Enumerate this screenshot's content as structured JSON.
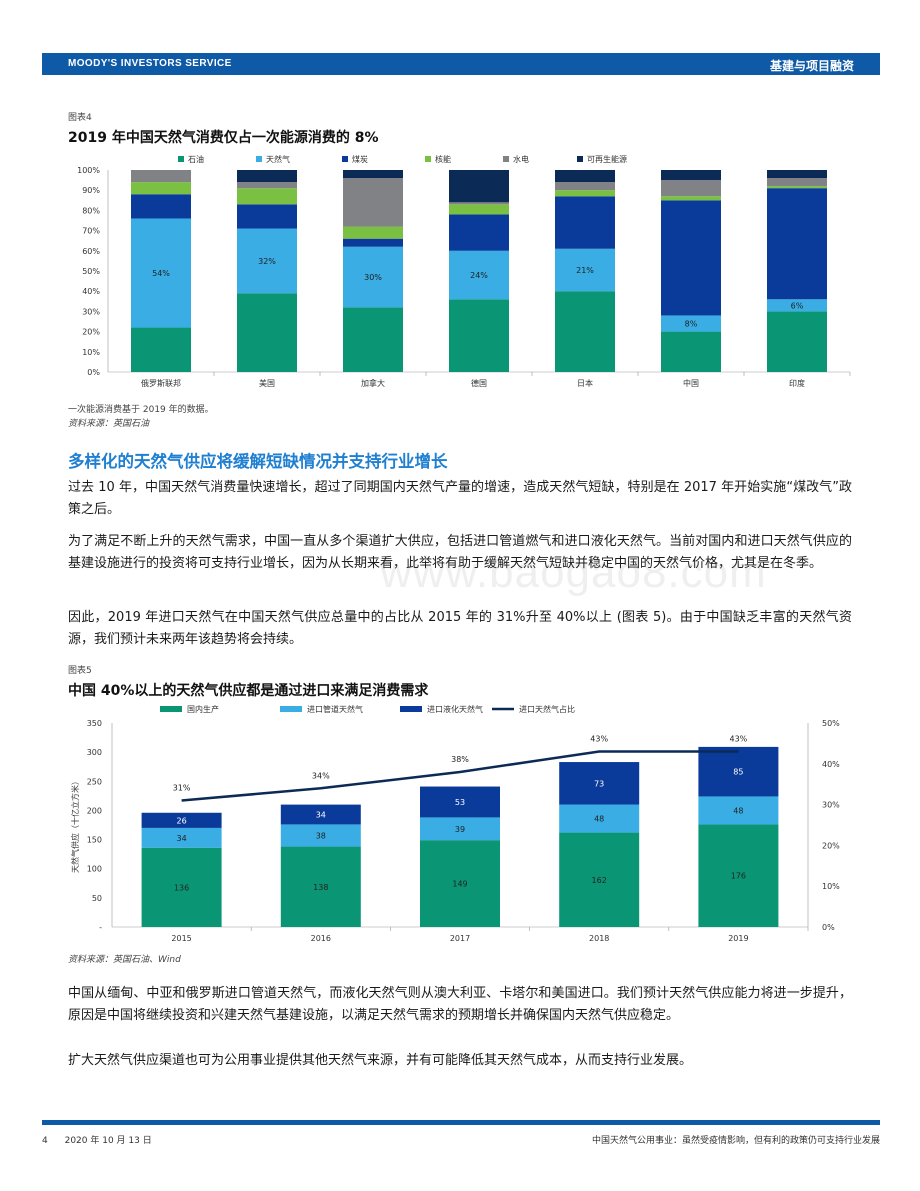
{
  "header": {
    "brand": "MOODY'S INVESTORS SERVICE",
    "section": "基建与项目融资"
  },
  "figure4": {
    "caption": "图表4",
    "title": "2019 年中国天然气消费仅占一次能源消费的 8%",
    "note": "一次能源消费基于 2019 年的数据。",
    "source": "资料来源：英国石油"
  },
  "figure5": {
    "caption": "图表5",
    "title": "中国 40%以上的天然气供应都是通过进口来满足消费需求",
    "source": "资料来源：英国石油、Wind"
  },
  "section_heading": "多样化的天然气供应将缓解短缺情况并支持行业增长",
  "paragraphs": {
    "p1": "过去 10 年，中国天然气消费量快速增长，超过了同期国内天然气产量的增速，造成天然气短缺，特别是在 2017 年开始实施“煤改气”政策之后。",
    "p2": "为了满足不断上升的天然气需求，中国一直从多个渠道扩大供应，包括进口管道燃气和进口液化天然气。当前对国内和进口天然气供应的基建设施进行的投资将可支持行业增长，因为从长期来看，此举将有助于缓解天然气短缺并稳定中国的天然气价格，尤其是在冬季。",
    "p3": "因此，2019 年进口天然气在中国天然气供应总量中的占比从 2015 年的 31%升至 40%以上 (图表 5)。由于中国缺乏丰富的天然气资源，我们预计未来两年该趋势将会持续。",
    "p4": "中国从缅甸、中亚和俄罗斯进口管道天然气，而液化天然气则从澳大利亚、卡塔尔和美国进口。我们预计天然气供应能力将进一步提升，原因是中国将继续投资和兴建天然气基建设施，以满足天然气需求的预期增长并确保国内天然气供应稳定。",
    "p5": "扩大天然气供应渠道也可为公用事业提供其他天然气来源，并有可能降低其天然气成本，从而支持行业发展。"
  },
  "watermark": "www.baogao8.com",
  "footer": {
    "page": "4",
    "date": "2020 年 10 月 13 日",
    "doc_title": "中国天然气公用事业：虽然受疫情影响，但有利的政策仍可支持行业发展"
  },
  "colors": {
    "brand_blue": "#0e5aa7",
    "heading_blue": "#1f7fd1",
    "oil": "#0a9674",
    "gas": "#39ade4",
    "coal": "#0b3b9a",
    "nuclear": "#7ac143",
    "hydro": "#818285",
    "renewables": "#0b2a55"
  },
  "chart_data": [
    {
      "type": "bar",
      "stacked": true,
      "percent": true,
      "categories": [
        "俄罗斯联邦",
        "美国",
        "加拿大",
        "德国",
        "日本",
        "中国",
        "印度"
      ],
      "series": [
        {
          "name": "石油",
          "color": "#0a9674",
          "values": [
            22,
            39,
            32,
            36,
            40,
            20,
            30
          ]
        },
        {
          "name": "天然气",
          "color": "#39ade4",
          "values": [
            54,
            32,
            30,
            24,
            21,
            8,
            6
          ]
        },
        {
          "name": "煤炭",
          "color": "#0b3b9a",
          "values": [
            12,
            12,
            4,
            18,
            26,
            57,
            55
          ]
        },
        {
          "name": "核能",
          "color": "#7ac143",
          "values": [
            6,
            8,
            6,
            5,
            3,
            2,
            1
          ]
        },
        {
          "name": "水电",
          "color": "#818285",
          "values": [
            6,
            3,
            24,
            1,
            4,
            8,
            4
          ]
        },
        {
          "name": "可再生能源",
          "color": "#0b2a55",
          "values": [
            0,
            6,
            4,
            16,
            6,
            5,
            4
          ]
        }
      ],
      "data_labels": [
        {
          "series": "天然气",
          "labels": [
            "54%",
            "32%",
            "30%",
            "24%",
            "21%",
            "8%",
            "6%"
          ]
        }
      ],
      "yticks": [
        "0%",
        "10%",
        "20%",
        "30%",
        "40%",
        "50%",
        "60%",
        "70%",
        "80%",
        "90%",
        "100%"
      ],
      "ylim": [
        0,
        100
      ],
      "legend": "top",
      "grid": false
    },
    {
      "type": "bar",
      "stacked": true,
      "categories": [
        "2015",
        "2016",
        "2017",
        "2018",
        "2019"
      ],
      "series": [
        {
          "name": "国内生产",
          "color": "#0a9674",
          "values": [
            136,
            138,
            149,
            162,
            176
          ]
        },
        {
          "name": "进口管道天然气",
          "color": "#39ade4",
          "values": [
            34,
            38,
            39,
            48,
            48
          ]
        },
        {
          "name": "进口液化天然气",
          "color": "#0b3b9a",
          "values": [
            26,
            34,
            53,
            73,
            85
          ]
        }
      ],
      "line_series": {
        "name": "进口天然气占比",
        "color": "#0b2a55",
        "axis": "right",
        "values": [
          31,
          34,
          38,
          43,
          43
        ],
        "labels": [
          "31%",
          "34%",
          "38%",
          "43%",
          "43%"
        ]
      },
      "ylabel": "天然气供应（十亿立方米）",
      "yticks": [
        "-",
        "50",
        "100",
        "150",
        "200",
        "250",
        "300",
        "350"
      ],
      "ylim": [
        0,
        350
      ],
      "y2ticks": [
        "0%",
        "10%",
        "20%",
        "30%",
        "40%",
        "50%"
      ],
      "y2lim": [
        0,
        50
      ],
      "legend": "top",
      "grid": false
    }
  ]
}
